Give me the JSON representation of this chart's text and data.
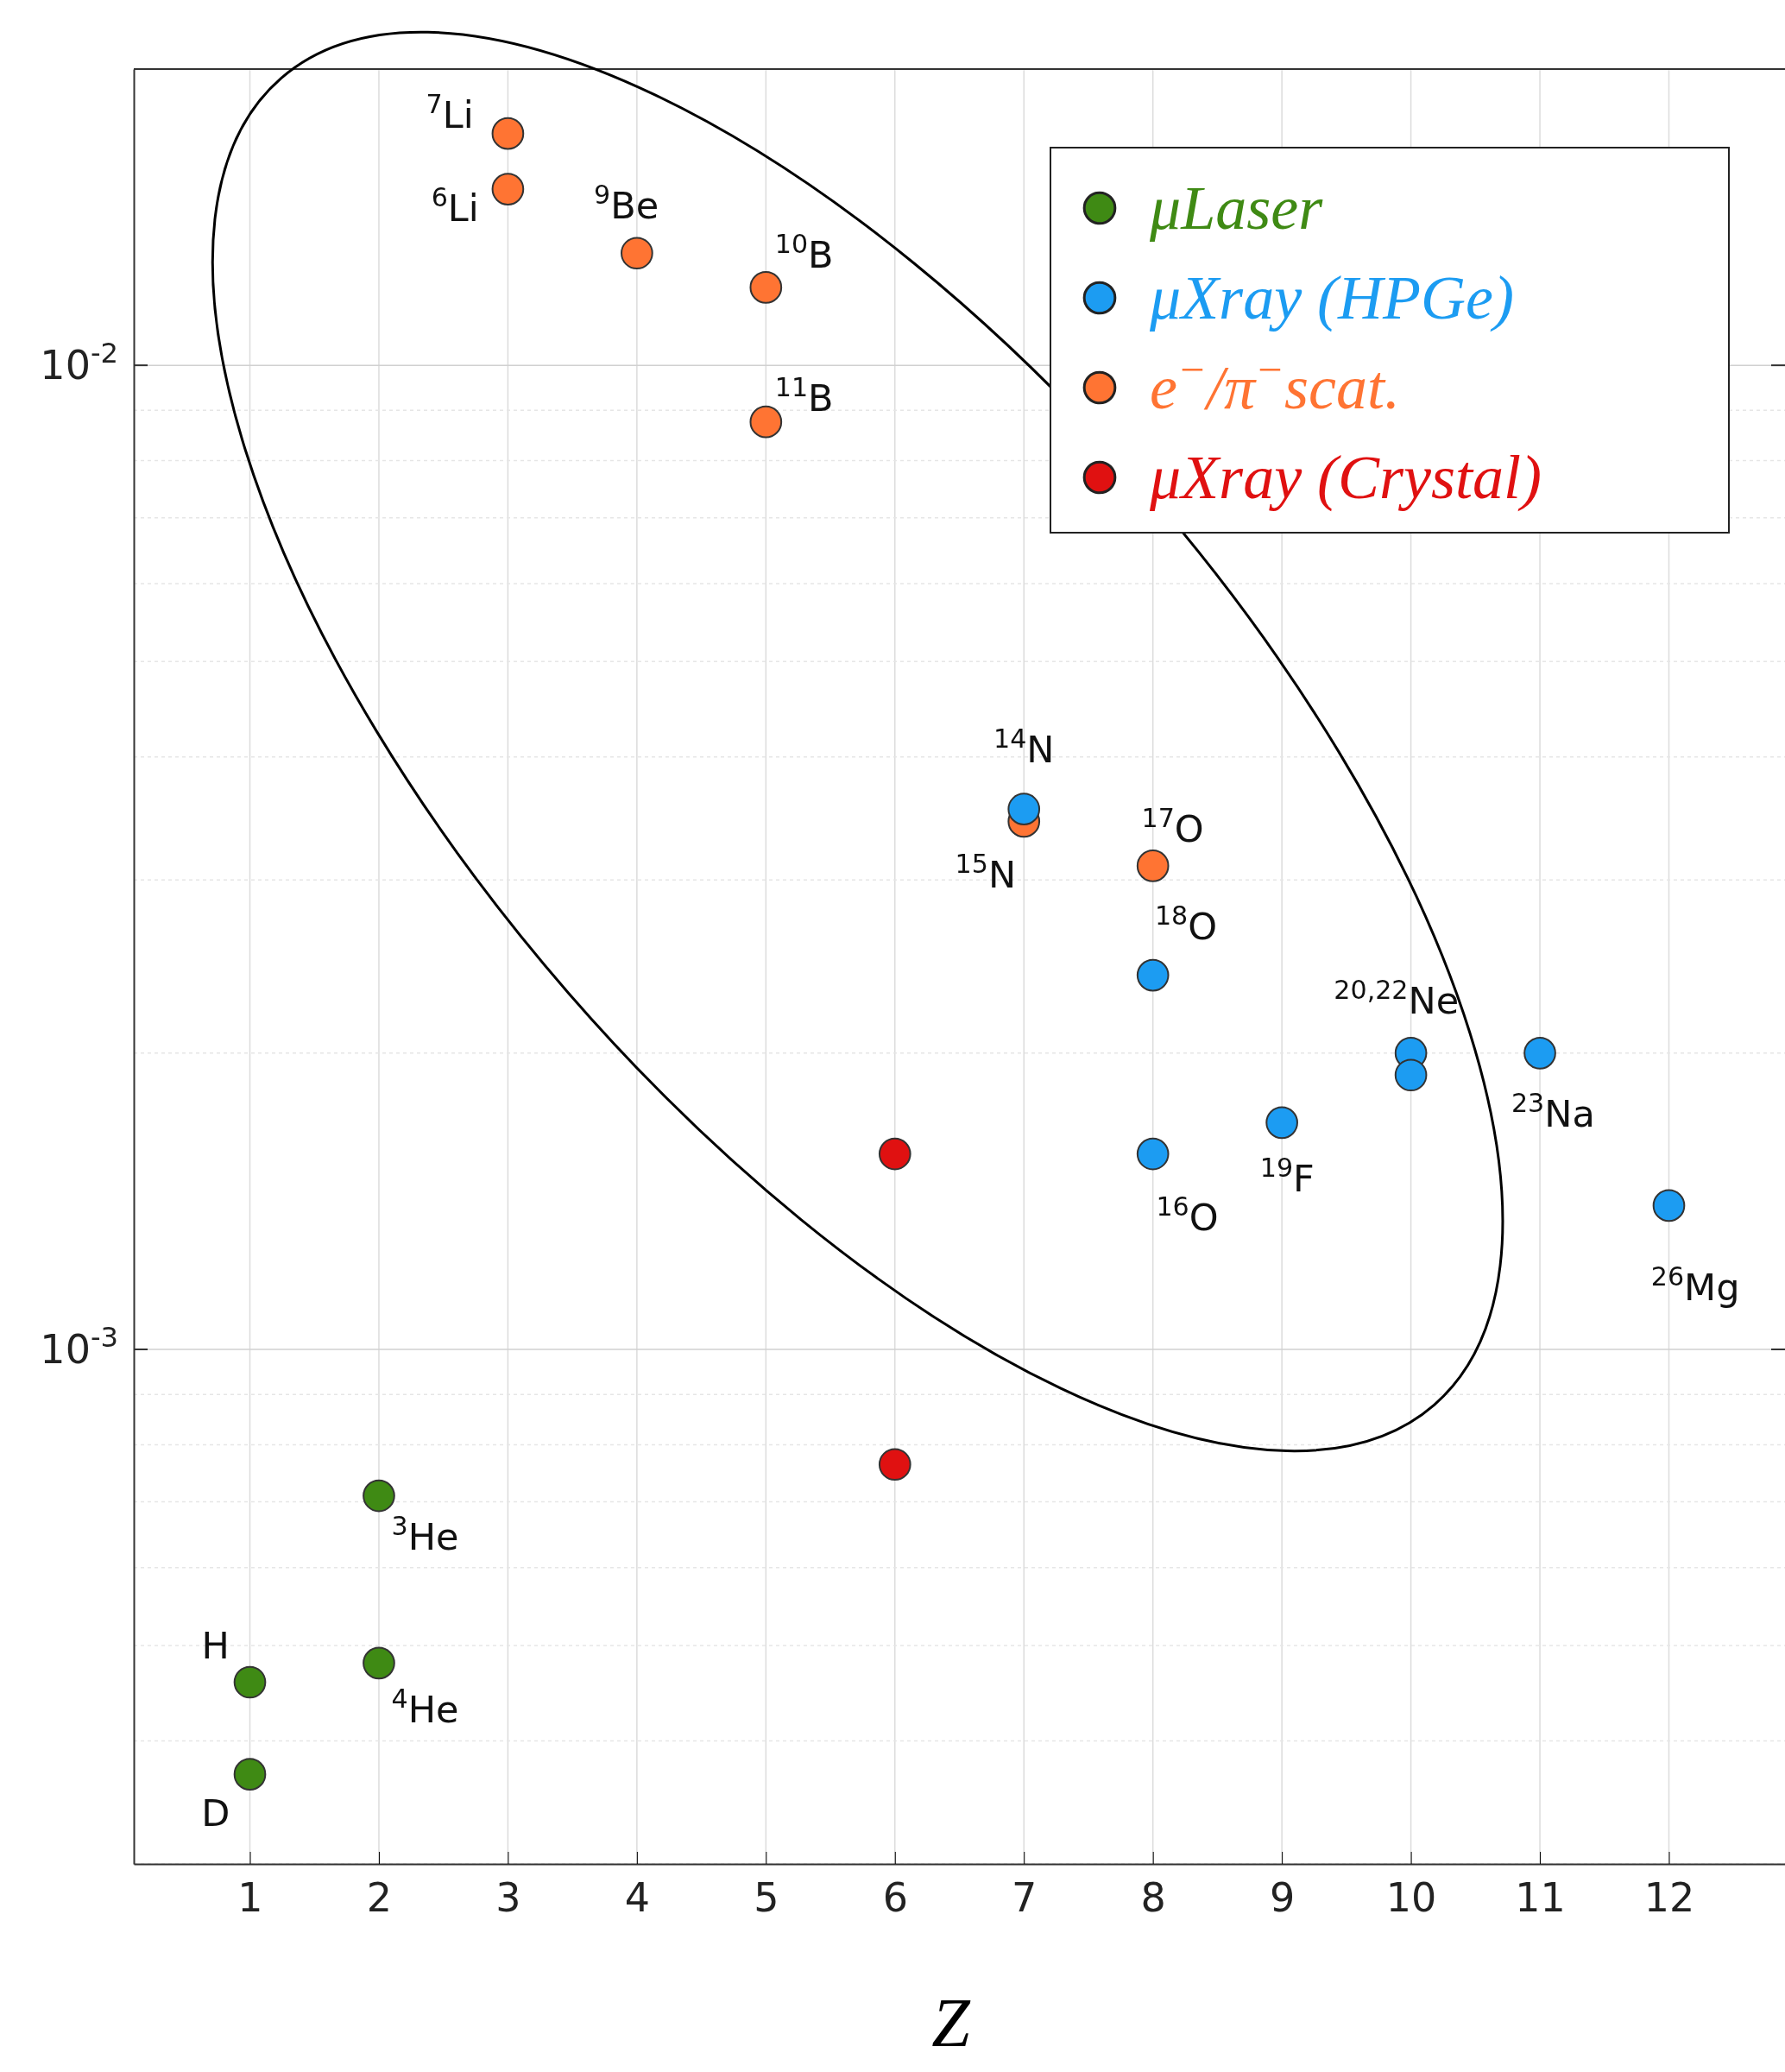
{
  "chart_data": {
    "type": "scatter",
    "xlabel": "Z",
    "log": "y",
    "grid": true,
    "legend": "top right",
    "marker": "circle",
    "xlim": [
      0.1,
      12.9
    ],
    "xticks": [
      1,
      2,
      3,
      4,
      5,
      6,
      7,
      8,
      9,
      10,
      11,
      12
    ],
    "ylim": [
      0.0003,
      0.02
    ],
    "yticks": [
      {
        "value": 0.0003,
        "label": null
      },
      {
        "value": 0.0004,
        "label": null
      },
      {
        "value": 0.0005,
        "label": null
      },
      {
        "value": 0.0006,
        "label": null
      },
      {
        "value": 0.0007,
        "label": null
      },
      {
        "value": 0.0008,
        "label": null
      },
      {
        "value": 0.0009,
        "label": null
      },
      {
        "value": 0.001,
        "label": "10$^{-3}$"
      },
      {
        "value": 0.002,
        "label": null
      },
      {
        "value": 0.003,
        "label": null
      },
      {
        "value": 0.004,
        "label": null
      },
      {
        "value": 0.005,
        "label": null
      },
      {
        "value": 0.006,
        "label": null
      },
      {
        "value": 0.007,
        "label": null
      },
      {
        "value": 0.008,
        "label": null
      },
      {
        "value": 0.009,
        "label": null
      },
      {
        "value": 0.01,
        "label": "10$^{-2}$"
      },
      {
        "value": 0.02,
        "label": null
      }
    ],
    "series": [
      {
        "name": "μLaser",
        "color": "#3f8a14",
        "x": [
          1,
          1,
          2,
          2
        ],
        "values": [
          0.000459,
          0.00037,
          0.00071,
          0.00048
        ]
      },
      {
        "name": "μXray (HPGe)",
        "color": "#1c9cf2",
        "x": [
          7,
          8,
          10,
          10,
          11,
          9,
          8,
          12
        ],
        "values": [
          0.00354,
          0.0024,
          0.002,
          0.0019,
          0.002,
          0.0017,
          0.00158,
          0.0014
        ]
      },
      {
        "name": "e$^{−}$/π$^{−}$scat.",
        "color": "#ff7433",
        "x": [
          3,
          3,
          4,
          5,
          5,
          7,
          8
        ],
        "values": [
          0.0172,
          0.0151,
          0.013,
          0.012,
          0.00876,
          0.00344,
          0.0031
        ]
      },
      {
        "name": "μXray (Crystal)",
        "color": "#e01111",
        "x": [
          6,
          6
        ],
        "values": [
          0.00158,
          0.000764
        ]
      }
    ],
    "annotations": [
      {
        "text": "$^{7}$Li",
        "x": 3,
        "y": 0.0172
      },
      {
        "text": "$^{6}$Li",
        "x": 3,
        "y": 0.0151
      },
      {
        "text": "$^{9}$Be",
        "x": 4,
        "y": 0.013
      },
      {
        "text": "$^{10}$B",
        "x": 5,
        "y": 0.012
      },
      {
        "text": "$^{11}$B",
        "x": 5,
        "y": 0.00876
      },
      {
        "text": "$^{14}$N",
        "x": 7,
        "y": 0.00354
      },
      {
        "text": "$^{15}$N",
        "x": 7,
        "y": 0.00344
      },
      {
        "text": "$^{17}$O",
        "x": 8,
        "y": 0.0031
      },
      {
        "text": "$^{18}$O",
        "x": 8,
        "y": 0.0024
      },
      {
        "text": "$^{20,22}$Ne",
        "x": 10,
        "y": 0.002
      },
      {
        "text": "$^{23}$Na",
        "x": 11,
        "y": 0.002
      },
      {
        "text": "$^{19}$F",
        "x": 9,
        "y": 0.0017
      },
      {
        "text": "$^{16}$O",
        "x": 8,
        "y": 0.00158
      },
      {
        "text": "$^{26}$Mg",
        "x": 12,
        "y": 0.0014
      },
      {
        "text": "$^{3}$He",
        "x": 2,
        "y": 0.00071
      },
      {
        "text": "H",
        "x": 1,
        "y": 0.000459
      },
      {
        "text": "$^{4}$He",
        "x": 2,
        "y": 0.00048
      },
      {
        "text": "D",
        "x": 1,
        "y": 0.00037
      }
    ]
  }
}
